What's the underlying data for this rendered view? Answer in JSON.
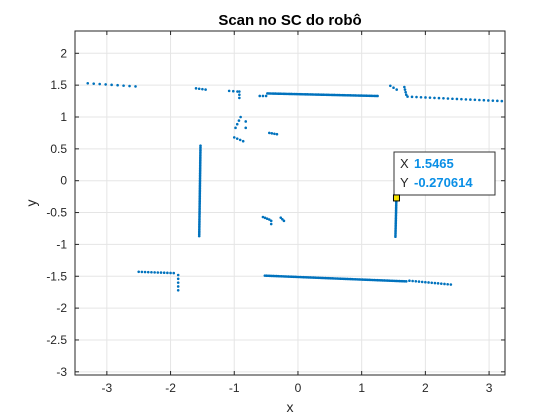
{
  "colors": {
    "marker": "#0072bd",
    "grid": "#e5e5e5",
    "axis": "#262626",
    "datatip_value": "#0a8fe6",
    "datatip_border": "#333333",
    "datatip_bg": "#ffffff"
  },
  "chart_data": {
    "type": "scatter",
    "title": "Scan no SC do robô",
    "xlabel": "x",
    "ylabel": "y",
    "xlim": [
      -3.5,
      3.25
    ],
    "ylim": [
      -3.05,
      2.35
    ],
    "xticks": [
      -3,
      -2,
      -1,
      0,
      1,
      2,
      3
    ],
    "yticks": [
      -3,
      -2.5,
      -2,
      -1.5,
      -1,
      -0.5,
      0,
      0.5,
      1,
      1.5,
      2
    ],
    "xtick_labels": [
      "-3",
      "-2",
      "-1",
      "0",
      "1",
      "2",
      "3"
    ],
    "ytick_labels": [
      "-3",
      "-2.5",
      "-2",
      "-1.5",
      "-1",
      "-0.5",
      "0",
      "0.5",
      "1",
      "1.5",
      "2"
    ],
    "grid": true,
    "box": true,
    "series": [
      {
        "marker": "dot",
        "segments": [
          {
            "x0": -3.3,
            "y0": 1.53,
            "x1": -2.55,
            "y1": 1.48,
            "n": 9
          },
          {
            "x0": -1.6,
            "y0": 1.45,
            "x1": -1.45,
            "y1": 1.43,
            "n": 4
          },
          {
            "x0": -1.08,
            "y0": 1.41,
            "x1": -0.95,
            "y1": 1.4,
            "n": 3
          },
          {
            "x0": -0.92,
            "y0": 1.4,
            "x1": -0.92,
            "y1": 1.3,
            "n": 3
          },
          {
            "x0": -0.6,
            "y0": 1.33,
            "x1": -0.5,
            "y1": 1.33,
            "n": 3
          },
          {
            "x0": -0.48,
            "y0": 1.37,
            "x1": 1.25,
            "y1": 1.33,
            "n": 70
          },
          {
            "x0": 1.45,
            "y0": 1.49,
            "x1": 1.55,
            "y1": 1.43,
            "n": 3
          },
          {
            "x0": 1.67,
            "y0": 1.47,
            "x1": 1.7,
            "y1": 1.35,
            "n": 4
          },
          {
            "x0": 1.72,
            "y0": 1.32,
            "x1": 3.2,
            "y1": 1.25,
            "n": 22
          },
          {
            "x0": -0.9,
            "y0": 1.0,
            "x1": -0.98,
            "y1": 0.83,
            "n": 4
          },
          {
            "x0": -0.82,
            "y0": 0.93,
            "x1": -0.82,
            "y1": 0.83,
            "n": 2
          },
          {
            "x0": -1.0,
            "y0": 0.68,
            "x1": -0.86,
            "y1": 0.62,
            "n": 4
          },
          {
            "x0": -0.45,
            "y0": 0.75,
            "x1": -0.33,
            "y1": 0.73,
            "n": 4
          },
          {
            "x0": -1.53,
            "y0": 0.55,
            "x1": -1.55,
            "y1": -0.87,
            "n": 56
          },
          {
            "x0": -0.55,
            "y0": -0.57,
            "x1": -0.45,
            "y1": -0.61,
            "n": 4
          },
          {
            "x0": -0.42,
            "y0": -0.63,
            "x1": -0.42,
            "y1": -0.68,
            "n": 2
          },
          {
            "x0": -0.27,
            "y0": -0.58,
            "x1": -0.22,
            "y1": -0.63,
            "n": 3
          },
          {
            "x0": 1.55,
            "y0": -0.08,
            "x1": 1.53,
            "y1": -0.88,
            "n": 32
          },
          {
            "x0": -2.5,
            "y0": -1.43,
            "x1": -1.95,
            "y1": -1.45,
            "n": 12
          },
          {
            "x0": -1.88,
            "y0": -1.48,
            "x1": -1.88,
            "y1": -1.72,
            "n": 5
          },
          {
            "x0": -0.52,
            "y0": -1.49,
            "x1": 1.7,
            "y1": -1.58,
            "n": 85
          },
          {
            "x0": 1.75,
            "y0": -1.57,
            "x1": 2.4,
            "y1": -1.63,
            "n": 14
          }
        ]
      }
    ],
    "datatip": {
      "x_label": "X",
      "y_label": "Y",
      "x_value": "1.5465",
      "y_value": "-0.270614",
      "x": 1.5465,
      "y": -0.270614
    }
  }
}
